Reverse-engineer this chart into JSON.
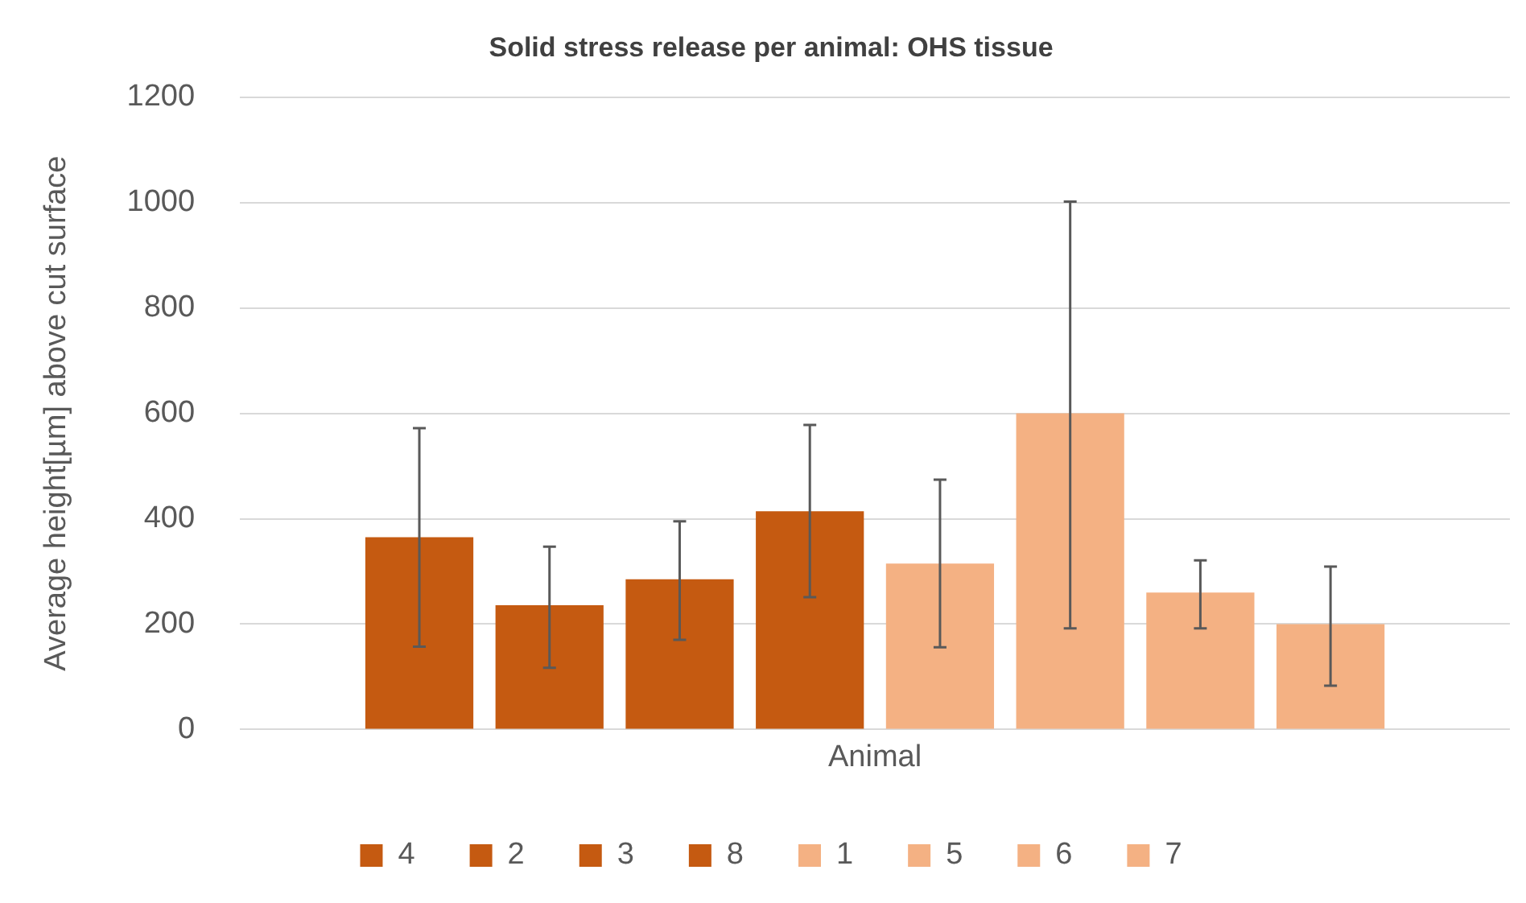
{
  "chart_data": {
    "type": "bar",
    "title": "Solid stress release per animal: OHS tissue",
    "ylabel": "Average height[µm] above cut surface",
    "categories": [
      "Animal"
    ],
    "series": [
      {
        "name": "4",
        "color": "#c55a11",
        "values": [
          365
        ],
        "errors": [
          [
            157,
            572
          ]
        ]
      },
      {
        "name": "2",
        "color": "#c55a11",
        "values": [
          236
        ],
        "errors": [
          [
            117,
            347
          ]
        ]
      },
      {
        "name": "3",
        "color": "#c55a11",
        "values": [
          285
        ],
        "errors": [
          [
            170,
            395
          ]
        ]
      },
      {
        "name": "8",
        "color": "#c55a11",
        "values": [
          414
        ],
        "errors": [
          [
            251,
            578
          ]
        ]
      },
      {
        "name": "1",
        "color": "#f4b183",
        "values": [
          315
        ],
        "errors": [
          [
            156,
            474
          ]
        ]
      },
      {
        "name": "5",
        "color": "#f4b183",
        "values": [
          600
        ],
        "errors": [
          [
            192,
            1002
          ]
        ]
      },
      {
        "name": "6",
        "color": "#f4b183",
        "values": [
          260
        ],
        "errors": [
          [
            192,
            321
          ]
        ]
      },
      {
        "name": "7",
        "color": "#f4b183",
        "values": [
          200
        ],
        "errors": [
          [
            83,
            309
          ]
        ]
      }
    ],
    "ylim": [
      0,
      1200
    ],
    "yticks": [
      0,
      200,
      400,
      600,
      800,
      1000,
      1200
    ],
    "grid": "y",
    "legend": "bottom"
  }
}
